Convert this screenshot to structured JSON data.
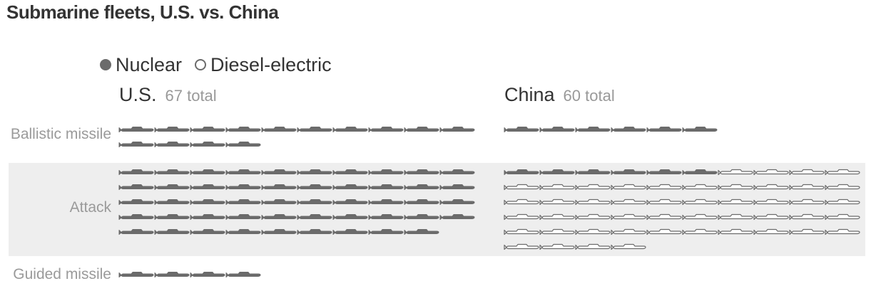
{
  "title": "Submarine fleets, U.S. vs. China",
  "legend": {
    "nuclear": "Nuclear",
    "diesel": "Diesel-electric"
  },
  "colors": {
    "nuclear_fill": "#6b6b6b",
    "diesel_stroke": "#6b6b6b",
    "band": "#eeeeee",
    "label": "#9a9a9a"
  },
  "icons": {
    "legend_nuclear": "filled-circle-icon",
    "legend_diesel": "hollow-circle-icon",
    "unit": "submarine-icon"
  },
  "countries": [
    {
      "name": "U.S.",
      "total_label": "67 total"
    },
    {
      "name": "China",
      "total_label": "60 total"
    }
  ],
  "chart_data": {
    "type": "unit-chart",
    "title": "Submarine fleets, U.S. vs. China",
    "units_per_row": 10,
    "categories": [
      "Ballistic missile",
      "Attack",
      "Guided missile"
    ],
    "series": [
      {
        "name": "U.S.",
        "total": 67,
        "counts": {
          "Ballistic missile": {
            "nuclear": 14,
            "diesel": 0
          },
          "Attack": {
            "nuclear": 49,
            "diesel": 0
          },
          "Guided missile": {
            "nuclear": 4,
            "diesel": 0
          }
        }
      },
      {
        "name": "China",
        "total": 60,
        "counts": {
          "Ballistic missile": {
            "nuclear": 6,
            "diesel": 0
          },
          "Attack": {
            "nuclear": 6,
            "diesel": 48
          },
          "Guided missile": {
            "nuclear": 0,
            "diesel": 0
          }
        }
      }
    ]
  }
}
